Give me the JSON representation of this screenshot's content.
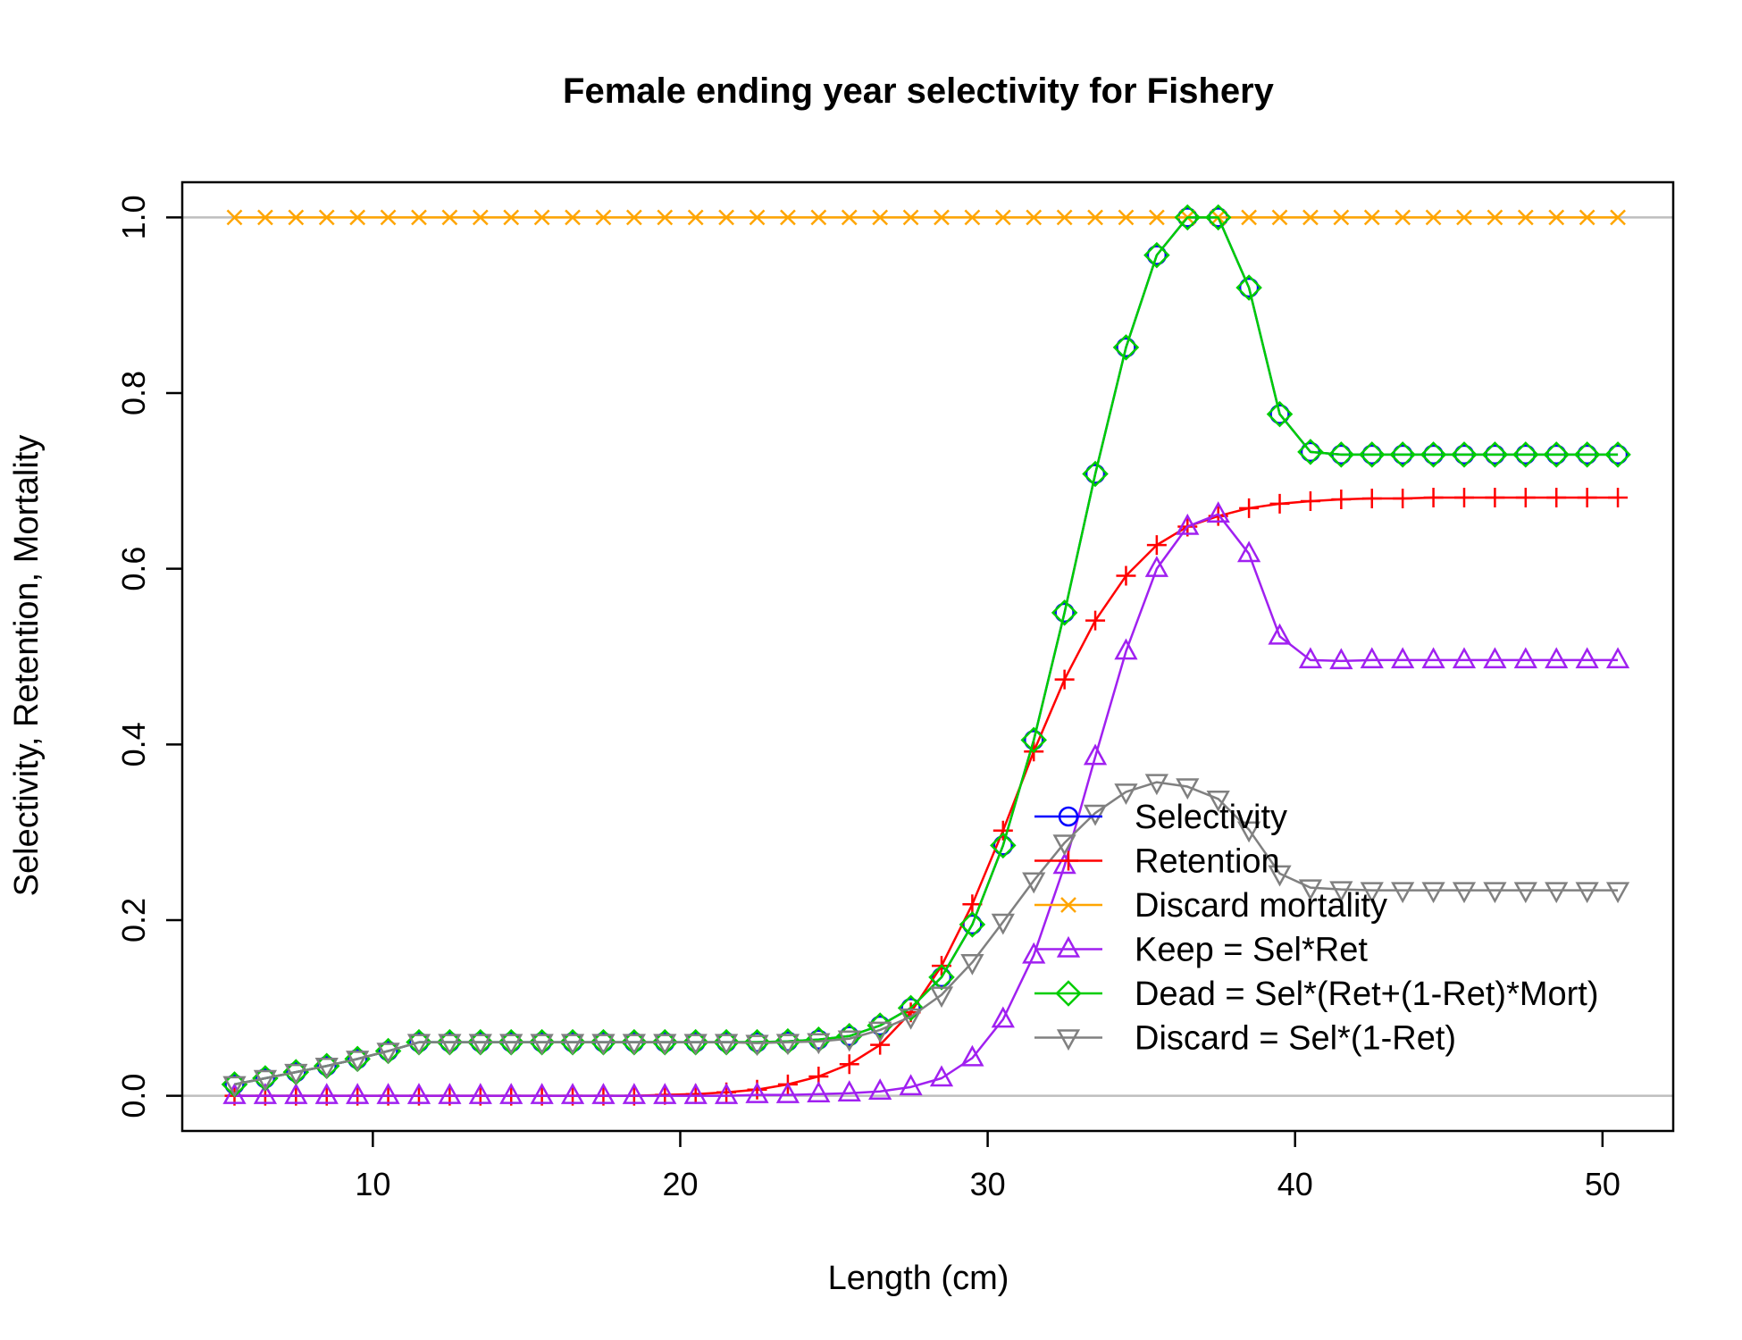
{
  "chart_data": {
    "type": "line",
    "title": "Female ending year selectivity for Fishery",
    "xlabel": "Length (cm)",
    "ylabel": "Selectivity, Retention, Mortality",
    "xlim": [
      3.8,
      52.3
    ],
    "ylim": [
      -0.04,
      1.04
    ],
    "x_ticks": [
      "10",
      "20",
      "30",
      "40",
      "50"
    ],
    "y_ticks": [
      "0.0",
      "0.2",
      "0.4",
      "0.6",
      "0.8",
      "1.0"
    ],
    "reference_lines": [
      0,
      1
    ],
    "legend_position": "bottom-right",
    "x": [
      5.5,
      6.5,
      7.5,
      8.5,
      9.5,
      10.5,
      11.5,
      12.5,
      13.5,
      14.5,
      15.5,
      16.5,
      17.5,
      18.5,
      19.5,
      20.5,
      21.5,
      22.5,
      23.5,
      24.5,
      25.5,
      26.5,
      27.5,
      28.5,
      29.5,
      30.5,
      31.5,
      32.5,
      33.5,
      34.5,
      35.5,
      36.5,
      37.5,
      38.5,
      39.5,
      40.5,
      41.5,
      42.5,
      43.5,
      44.5,
      45.5,
      46.5,
      47.5,
      48.5,
      49.5,
      50.5
    ],
    "series": [
      {
        "name": "Selectivity",
        "color": "#0000ff",
        "marker": "circle",
        "values": [
          0.013,
          0.02,
          0.027,
          0.034,
          0.042,
          0.051,
          0.061,
          0.061,
          0.061,
          0.061,
          0.061,
          0.061,
          0.061,
          0.061,
          0.061,
          0.061,
          0.061,
          0.061,
          0.062,
          0.064,
          0.068,
          0.08,
          0.1,
          0.135,
          0.195,
          0.285,
          0.405,
          0.55,
          0.708,
          0.852,
          0.957,
          1.0,
          1.0,
          0.92,
          0.776,
          0.733,
          0.73,
          0.73,
          0.73,
          0.73,
          0.73,
          0.73,
          0.73,
          0.73,
          0.73,
          0.73
        ]
      },
      {
        "name": "Retention",
        "color": "#ff0000",
        "marker": "plus",
        "values": [
          0.0,
          0.0,
          0.0,
          0.0,
          0.0,
          0.0,
          0.0,
          0.0,
          0.0,
          0.0,
          0.0,
          0.0,
          0.0,
          0.0,
          0.001,
          0.002,
          0.004,
          0.007,
          0.013,
          0.022,
          0.036,
          0.058,
          0.095,
          0.148,
          0.218,
          0.302,
          0.392,
          0.474,
          0.541,
          0.592,
          0.627,
          0.648,
          0.66,
          0.669,
          0.674,
          0.677,
          0.679,
          0.68,
          0.68,
          0.681,
          0.681,
          0.681,
          0.681,
          0.681,
          0.681,
          0.681
        ]
      },
      {
        "name": "Discard mortality",
        "color": "#ffa500",
        "marker": "x",
        "values": [
          1,
          1,
          1,
          1,
          1,
          1,
          1,
          1,
          1,
          1,
          1,
          1,
          1,
          1,
          1,
          1,
          1,
          1,
          1,
          1,
          1,
          1,
          1,
          1,
          1,
          1,
          1,
          1,
          1,
          1,
          1,
          1,
          1,
          1,
          1,
          1,
          1,
          1,
          1,
          1,
          1,
          1,
          1,
          1,
          1,
          1
        ]
      },
      {
        "name": "Keep = Sel*Ret",
        "color": "#a020f0",
        "marker": "triangle-up",
        "values": [
          0.0,
          0.0,
          0.0,
          0.0,
          0.0,
          0.0,
          0.0,
          0.0,
          0.0,
          0.0,
          0.0,
          0.0,
          0.0,
          0.0,
          0.0,
          0.0,
          0.0,
          0.001,
          0.001,
          0.002,
          0.003,
          0.005,
          0.01,
          0.02,
          0.043,
          0.087,
          0.16,
          0.262,
          0.386,
          0.506,
          0.6,
          0.648,
          0.662,
          0.617,
          0.523,
          0.496,
          0.495,
          0.496,
          0.496,
          0.496,
          0.496,
          0.496,
          0.496,
          0.496,
          0.496,
          0.496
        ]
      },
      {
        "name": "Dead = Sel*(Ret+(1-Ret)*Mort)",
        "color": "#00cd00",
        "marker": "diamond",
        "values": [
          0.013,
          0.02,
          0.027,
          0.034,
          0.042,
          0.051,
          0.061,
          0.061,
          0.061,
          0.061,
          0.061,
          0.061,
          0.061,
          0.061,
          0.061,
          0.061,
          0.061,
          0.061,
          0.062,
          0.064,
          0.068,
          0.08,
          0.1,
          0.135,
          0.195,
          0.285,
          0.405,
          0.55,
          0.708,
          0.852,
          0.957,
          1.0,
          1.0,
          0.92,
          0.776,
          0.733,
          0.73,
          0.73,
          0.73,
          0.73,
          0.73,
          0.73,
          0.73,
          0.73,
          0.73,
          0.73
        ]
      },
      {
        "name": "Discard = Sel*(1-Ret)",
        "color": "#808080",
        "marker": "triangle-down",
        "values": [
          0.013,
          0.02,
          0.027,
          0.034,
          0.042,
          0.051,
          0.061,
          0.061,
          0.061,
          0.061,
          0.061,
          0.061,
          0.061,
          0.061,
          0.061,
          0.061,
          0.061,
          0.06,
          0.061,
          0.062,
          0.065,
          0.075,
          0.09,
          0.115,
          0.152,
          0.198,
          0.245,
          0.288,
          0.322,
          0.346,
          0.357,
          0.352,
          0.338,
          0.303,
          0.253,
          0.237,
          0.235,
          0.234,
          0.234,
          0.234,
          0.234,
          0.234,
          0.234,
          0.234,
          0.234,
          0.234
        ]
      }
    ]
  },
  "colors": {
    "reference_line": "#bebebe",
    "frame": "#000000"
  }
}
